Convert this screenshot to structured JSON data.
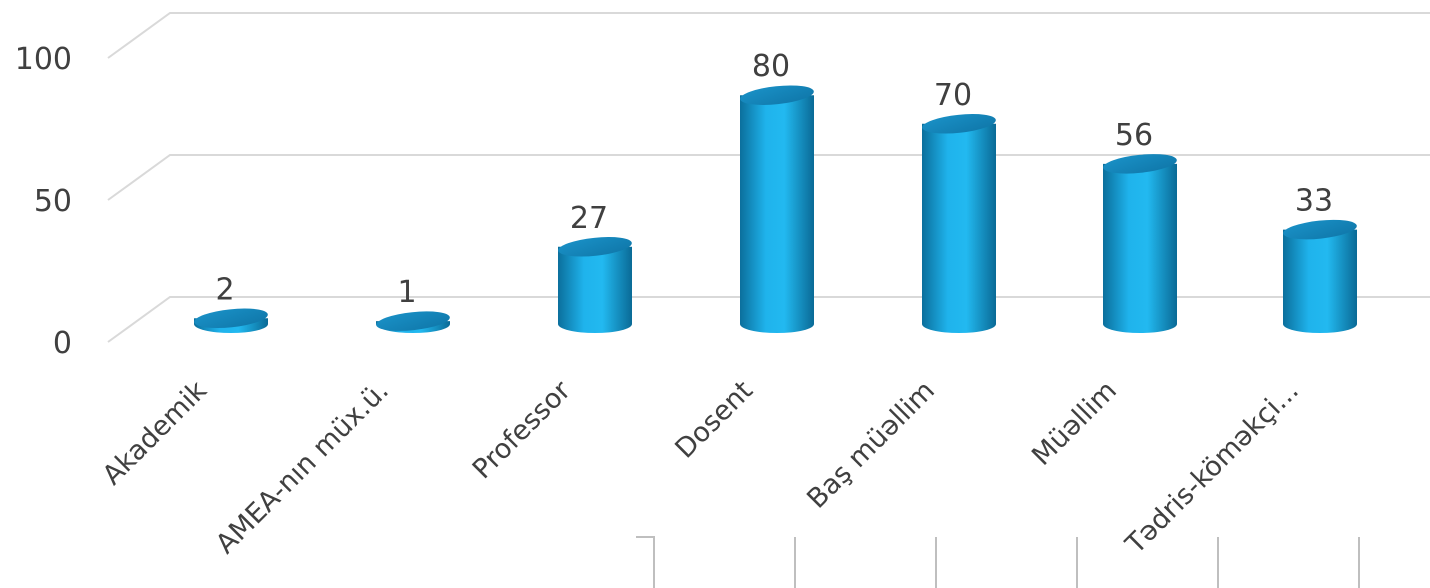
{
  "chart_data": {
    "type": "bar",
    "title": "",
    "xlabel": "",
    "ylabel": "",
    "categories": [
      "Akademik",
      "AMEA-nın müx.ü.",
      "Professor",
      "Dosent",
      "Baş müəllim",
      "Müəllim",
      "Tədris-köməkçi..."
    ],
    "values": [
      2,
      1,
      27,
      80,
      70,
      56,
      33
    ],
    "data_labels": [
      "2",
      "1",
      "27",
      "80",
      "70",
      "56",
      "33"
    ],
    "ylim": [
      0,
      100
    ],
    "yticks": [
      "0",
      "50",
      "100"
    ],
    "grid": true,
    "legend": "none",
    "style": "3d-cylinder",
    "colors": {
      "bar": "#1aa6dd",
      "bar_dark": "#0b6f9c",
      "bar_top": "#1586bb",
      "gridline": "#d9d9d9",
      "text": "#404040"
    }
  }
}
